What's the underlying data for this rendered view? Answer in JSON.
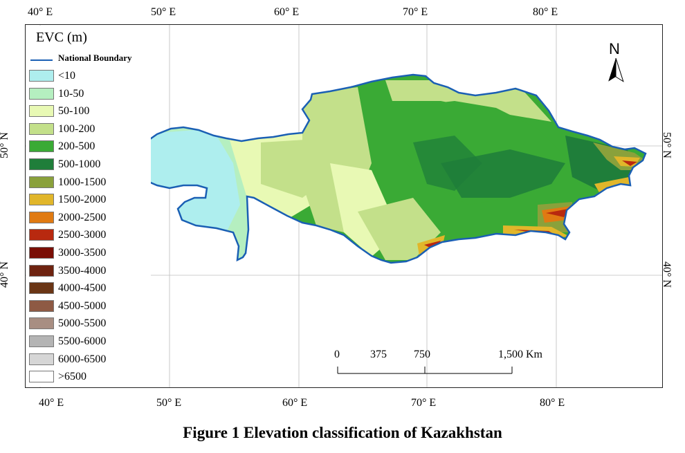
{
  "map": {
    "legend_title": "EVC (m)",
    "boundary_label": "National Boundary",
    "boundary_color": "#1a5fb4",
    "legend": [
      {
        "label": "<10",
        "color": "#aeeeee"
      },
      {
        "label": "10-50",
        "color": "#b5efc0"
      },
      {
        "label": "50-100",
        "color": "#e8f9b4"
      },
      {
        "label": "100-200",
        "color": "#c3e08a"
      },
      {
        "label": "200-500",
        "color": "#3aaa35"
      },
      {
        "label": "500-1000",
        "color": "#1f7e3a"
      },
      {
        "label": "1000-1500",
        "color": "#8aa13b"
      },
      {
        "label": "1500-2000",
        "color": "#e1b62a"
      },
      {
        "label": "2000-2500",
        "color": "#e07a12"
      },
      {
        "label": "2500-3000",
        "color": "#b8290f"
      },
      {
        "label": "3000-3500",
        "color": "#7a0e05"
      },
      {
        "label": "3500-4000",
        "color": "#6e2310"
      },
      {
        "label": "4000-4500",
        "color": "#6a3515"
      },
      {
        "label": "4500-5000",
        "color": "#8e5a44"
      },
      {
        "label": "5000-5500",
        "color": "#a88e82"
      },
      {
        "label": "5500-6000",
        "color": "#b4b4b4"
      },
      {
        "label": "6000-6500",
        "color": "#d6d6d6"
      },
      {
        "label": ">6500",
        "color": "#ffffff"
      }
    ],
    "longitude_labels": [
      "40° E",
      "50° E",
      "60° E",
      "70° E",
      "80° E"
    ],
    "latitude_labels": [
      "50° N",
      "40° N"
    ],
    "north_label": "N",
    "scale_labels": [
      "0",
      "375",
      "750",
      "1,500 Km"
    ],
    "caption": "Figure 1  Elevation classification of Kazakhstan"
  }
}
